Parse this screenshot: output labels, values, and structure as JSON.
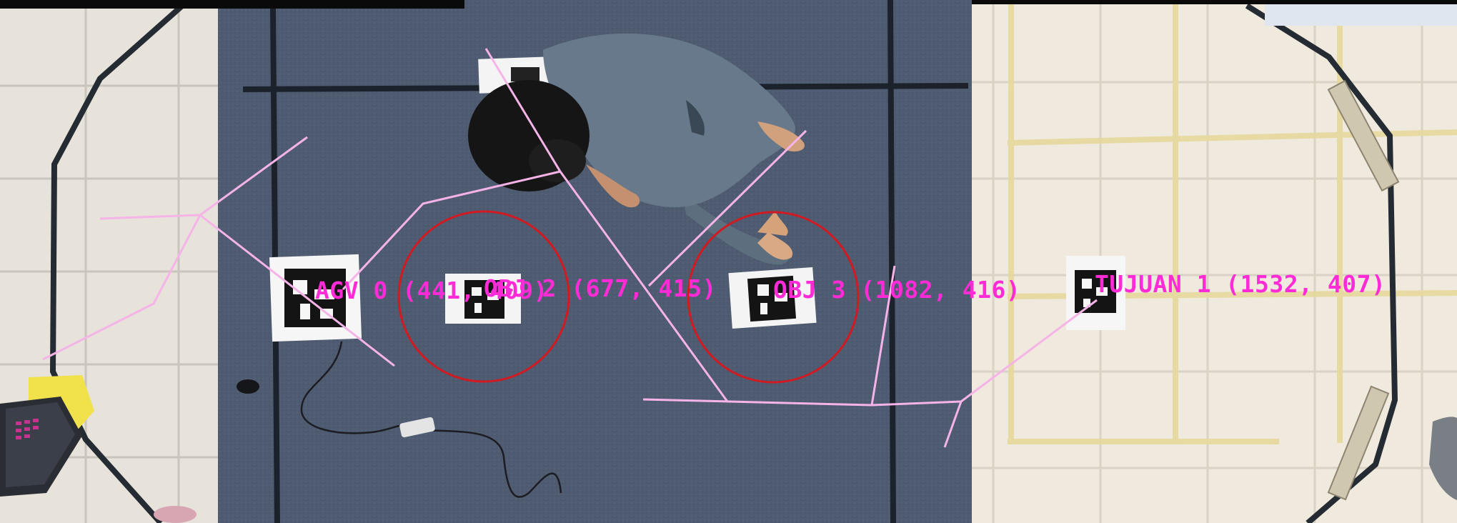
{
  "colors": {
    "label": "#ff2bd6",
    "circle": "#d11a22",
    "path": "#f6b3e8",
    "carpet": "#4f5d73",
    "floor_left": "#e6e2da",
    "floor_right": "#efe9dc",
    "tape": "#222a33"
  },
  "markers": [
    {
      "id": "agv-0",
      "text": "AGV 0 (441, 409)"
    },
    {
      "id": "obj-2",
      "text": "OBJ 2 (677, 415)"
    },
    {
      "id": "obj-3",
      "text": "OBJ 3 (1082, 416)"
    },
    {
      "id": "tujuan-1",
      "text": "TUJUAN 1 (1532, 407)"
    }
  ]
}
